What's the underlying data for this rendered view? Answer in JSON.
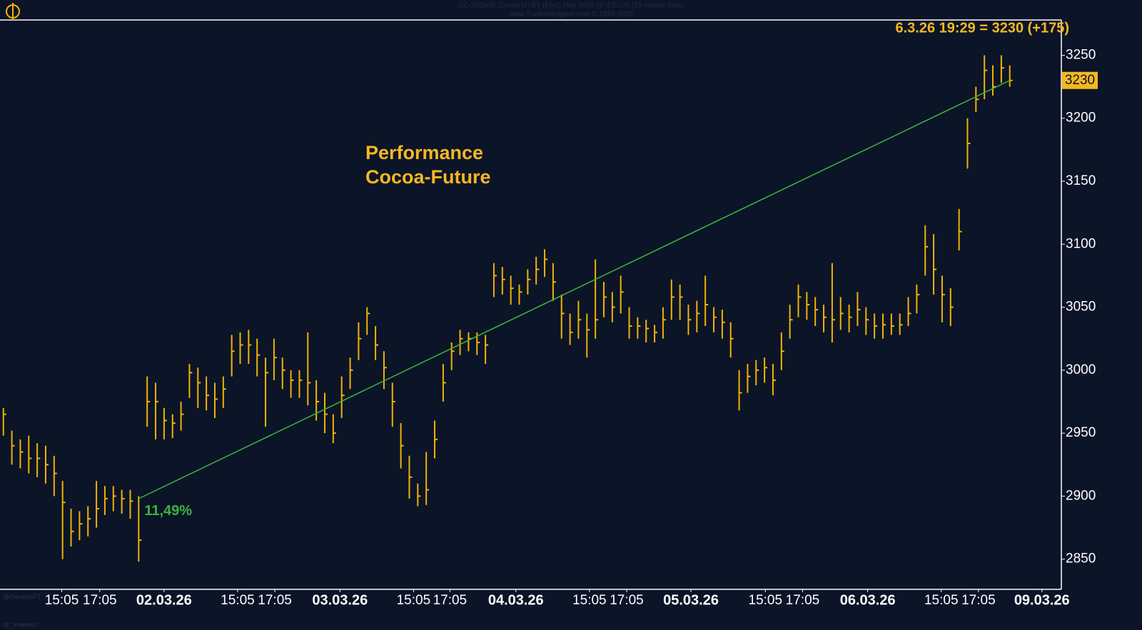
{
  "chart_data": {
    "type": "ohlc",
    "title": "CC-202605: Cocoa NYBT (Elec) May 2026 @ ICE-US (10 minute bars)",
    "subtitle": "www.TradeNavigator.com © 1999-2026",
    "annotation": [
      "Performance",
      "Cocoa-Future"
    ],
    "price_label": "6.3.26 19:29 = 3230 (+175)",
    "last_value": 3230,
    "credits": [
      "@GenesisFT",
      "@_Investoz"
    ],
    "color": "#f0b400",
    "close": [
      2965,
      2940,
      2935,
      2930,
      2930,
      2925,
      2918,
      2895,
      2872,
      2878,
      2882,
      2890,
      2898,
      2900,
      2898,
      2896,
      2865,
      2975,
      2975,
      2960,
      2958,
      2965,
      2998,
      2990,
      2980,
      2977,
      2985,
      3015,
      3020,
      3020,
      3012,
      2998,
      3010,
      3000,
      2992,
      2992,
      2990,
      2975,
      2965,
      2950,
      2980,
      3000,
      3025,
      3045,
      3020,
      3002,
      2975,
      2940,
      2915,
      2900,
      2905,
      2945,
      2990,
      3015,
      3025,
      3025,
      3022,
      3020,
      3075,
      3072,
      3065,
      3062,
      3072,
      3080,
      3088,
      3070,
      3045,
      3030,
      3040,
      3032,
      3040,
      3058,
      3050,
      3062,
      3035,
      3035,
      3033,
      3030,
      3040,
      3058,
      3058,
      3040,
      3045,
      3052,
      3042,
      3038,
      3025,
      2982,
      2995,
      3000,
      3002,
      2992,
      3015,
      3040,
      3058,
      3052,
      3048,
      3042,
      3040,
      3045,
      3042,
      3048,
      3040,
      3035,
      3036,
      3035,
      3036,
      3045,
      3060,
      3098,
      3080,
      3060,
      3050,
      3110,
      3180,
      3215,
      3238,
      3225,
      3240,
      3230
    ],
    "high": [
      2970,
      2952,
      2945,
      2948,
      2942,
      2940,
      2932,
      2912,
      2890,
      2888,
      2892,
      2912,
      2908,
      2908,
      2905,
      2905,
      2900,
      2995,
      2990,
      2970,
      2965,
      2975,
      3005,
      3002,
      2995,
      2990,
      2995,
      3028,
      3030,
      3032,
      3025,
      3010,
      3025,
      3010,
      3000,
      3000,
      3030,
      2992,
      2982,
      2965,
      2995,
      3010,
      3038,
      3050,
      3035,
      3015,
      2990,
      2958,
      2932,
      2910,
      2935,
      2960,
      3005,
      3022,
      3032,
      3030,
      3030,
      3028,
      3085,
      3082,
      3075,
      3068,
      3080,
      3090,
      3096,
      3085,
      3060,
      3045,
      3055,
      3045,
      3088,
      3070,
      3062,
      3075,
      3050,
      3042,
      3040,
      3036,
      3050,
      3072,
      3068,
      3052,
      3055,
      3075,
      3050,
      3048,
      3038,
      3000,
      3005,
      3008,
      3010,
      3005,
      3030,
      3052,
      3068,
      3062,
      3058,
      3052,
      3085,
      3058,
      3052,
      3062,
      3050,
      3045,
      3045,
      3045,
      3045,
      3058,
      3068,
      3115,
      3108,
      3075,
      3065,
      3128,
      3200,
      3225,
      3250,
      3242,
      3250,
      3242
    ],
    "low": [
      2948,
      2925,
      2922,
      2918,
      2915,
      2910,
      2900,
      2850,
      2860,
      2865,
      2868,
      2875,
      2885,
      2888,
      2886,
      2882,
      2848,
      2955,
      2945,
      2945,
      2946,
      2952,
      2978,
      2970,
      2968,
      2962,
      2970,
      2995,
      3005,
      3005,
      2995,
      2955,
      2992,
      2985,
      2978,
      2978,
      2972,
      2960,
      2950,
      2942,
      2962,
      2985,
      3008,
      3028,
      3008,
      2985,
      2955,
      2922,
      2898,
      2892,
      2893,
      2930,
      2975,
      3000,
      3012,
      3015,
      3012,
      3005,
      3058,
      3060,
      3052,
      3052,
      3060,
      3068,
      3074,
      3055,
      3025,
      3020,
      3025,
      3010,
      3025,
      3042,
      3038,
      3045,
      3025,
      3025,
      3022,
      3022,
      3025,
      3040,
      3040,
      3028,
      3030,
      3035,
      3030,
      3025,
      3010,
      2968,
      2982,
      2988,
      2990,
      2980,
      3000,
      3025,
      3042,
      3040,
      3035,
      3030,
      3022,
      3032,
      3030,
      3035,
      3028,
      3025,
      3025,
      3028,
      3028,
      3035,
      3045,
      3075,
      3060,
      3038,
      3035,
      3095,
      3160,
      3205,
      3215,
      3218,
      3228,
      3225
    ],
    "trendline": {
      "x": [
        16,
        119
      ],
      "y": [
        2898,
        3230
      ],
      "label": "11,49%",
      "color": "#3cb43c"
    },
    "xlim": [
      -0.4,
      125.1
    ],
    "xticks": [
      {
        "value": 6.9,
        "label": "15:05"
      },
      {
        "value": 11.4,
        "label": "17:05"
      },
      {
        "value": 19,
        "label": "02.03.26"
      },
      {
        "value": 27.7,
        "label": "15:05"
      },
      {
        "value": 32.1,
        "label": "17:05"
      },
      {
        "value": 39.8,
        "label": "03.03.26"
      },
      {
        "value": 48.5,
        "label": "15:05"
      },
      {
        "value": 52.8,
        "label": "17:05"
      },
      {
        "value": 60.6,
        "label": "04.03.26"
      },
      {
        "value": 69.3,
        "label": "15:05"
      },
      {
        "value": 73.7,
        "label": "17:05"
      },
      {
        "value": 81.3,
        "label": "05.03.26"
      },
      {
        "value": 90.1,
        "label": "15:05"
      },
      {
        "value": 94.5,
        "label": "17:05"
      },
      {
        "value": 102.2,
        "label": "06.03.26"
      },
      {
        "value": 110.9,
        "label": "15:05"
      },
      {
        "value": 115.3,
        "label": "17:05"
      },
      {
        "value": 122.8,
        "label": "09.03.26"
      }
    ],
    "ylim": [
      2826,
      3278
    ],
    "yticks": [
      2850,
      2900,
      2950,
      3000,
      3050,
      3100,
      3150,
      3200,
      3250
    ]
  }
}
